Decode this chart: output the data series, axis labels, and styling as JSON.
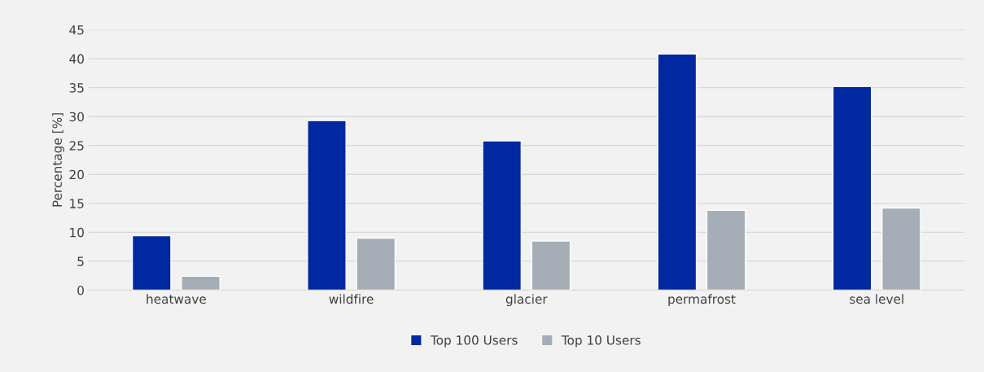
{
  "chart_data": {
    "type": "bar",
    "ylabel": "Percentage [%]",
    "categories": [
      "heatwave",
      "wildfire",
      "glacier",
      "permafrost",
      "sea level"
    ],
    "series": [
      {
        "name": "Top 100 Users",
        "color": "#0028a0",
        "values": [
          9.4,
          29.3,
          25.8,
          40.8,
          35.2
        ]
      },
      {
        "name": "Top 10 Users",
        "color": "#a5adb6",
        "values": [
          2.4,
          9.0,
          8.5,
          13.8,
          14.2
        ]
      }
    ],
    "ylim": [
      0,
      45
    ],
    "yticks": [
      0,
      5,
      10,
      15,
      20,
      25,
      30,
      35,
      40,
      45
    ],
    "grid": "y",
    "legend": "bottom"
  }
}
